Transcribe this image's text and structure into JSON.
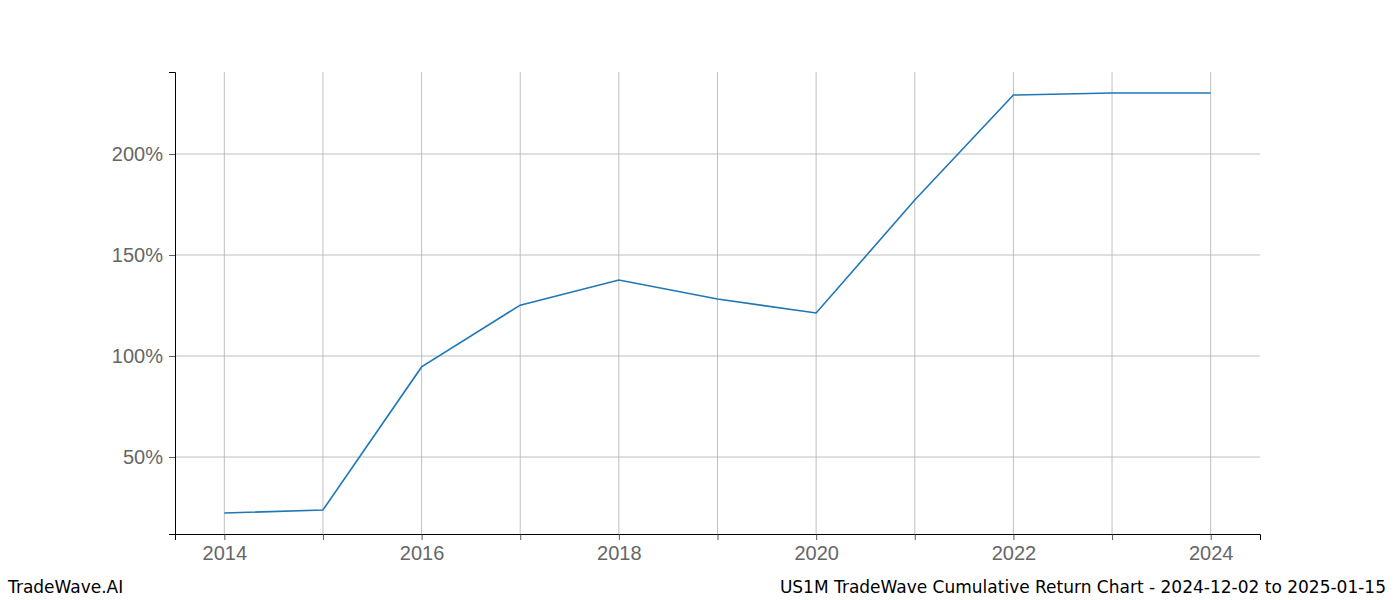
{
  "chart_data": {
    "type": "line",
    "title": "US1M TradeWave Cumulative Return Chart - 2024-12-02 to 2025-01-15",
    "source": "TradeWave.AI",
    "x": [
      2014,
      2015,
      2016,
      2017,
      2018,
      2019,
      2020,
      2021,
      2022,
      2023,
      2024
    ],
    "values": [
      22.3,
      23.8,
      94.6,
      125.2,
      137.6,
      128.2,
      121.3,
      177.2,
      229.2,
      230.2,
      230.2
    ],
    "color": "#1f77b4",
    "xlim": [
      2013.5,
      2024.5
    ],
    "xticks": [
      2014,
      {
        "value": 2015,
        "label": null
      },
      2016,
      {
        "value": 2017,
        "label": null
      },
      2018,
      {
        "value": 2019,
        "label": null
      },
      2020,
      {
        "value": 2021,
        "label": null
      },
      2022,
      {
        "value": 2023,
        "label": null
      },
      2024
    ],
    "ylim": [
      11.9,
      240.6
    ],
    "yticks": [
      {
        "value": 50,
        "label": "50%"
      },
      {
        "value": 100,
        "label": "100%"
      },
      {
        "value": 150,
        "label": "150%"
      },
      {
        "value": 200,
        "label": "200%"
      }
    ],
    "grid": true
  }
}
